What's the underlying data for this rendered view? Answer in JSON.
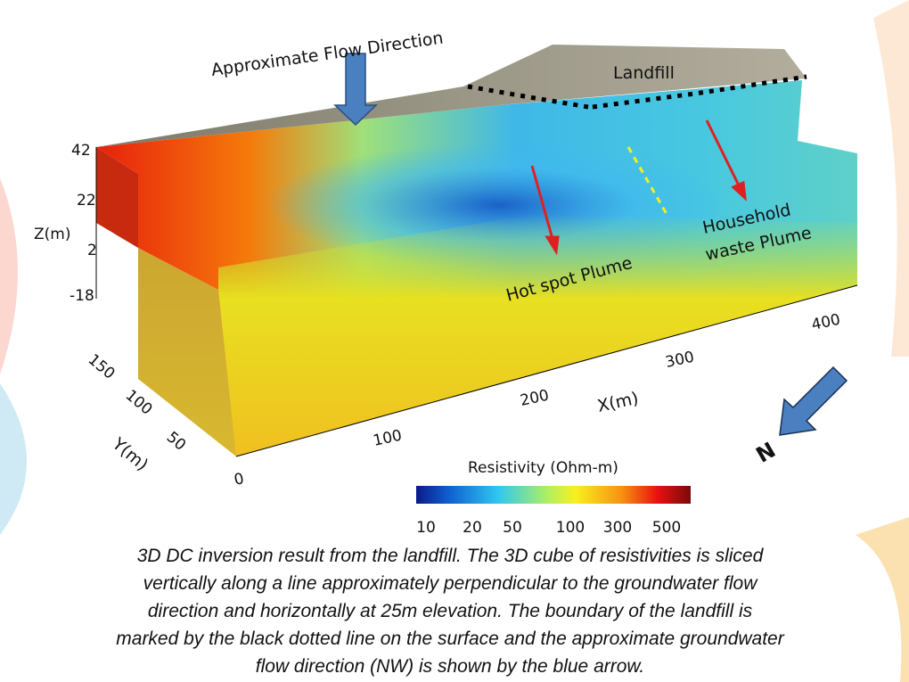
{
  "figure": {
    "flow_label": "Approximate Flow Direction",
    "landfill_label": "Landfill",
    "hotspot_label": "Hot spot Plume",
    "household_label": [
      "Household",
      "waste Plume"
    ],
    "north_label": "N",
    "z_axis": {
      "label": "Z(m)",
      "ticks": [
        "42",
        "22",
        "2",
        "-18"
      ]
    },
    "x_axis": {
      "label": "X(m)",
      "ticks": [
        "0",
        "100",
        "200",
        "300",
        "400"
      ]
    },
    "y_axis": {
      "label": "Y(m)",
      "ticks": [
        "50",
        "100",
        "150"
      ]
    },
    "colorbar": {
      "title": "Resistivity (Ohm-m)",
      "ticks": [
        "10",
        "20",
        "50",
        "100",
        "300",
        "500"
      ]
    }
  },
  "caption": {
    "lines": [
      "3D DC inversion result from the landfill. The 3D cube of resistivities is sliced",
      "vertically along a line approximately perpendicular to the groundwater flow",
      "direction and horizontally at 25m elevation. The boundary of the landfill is",
      "marked by the black dotted line on the surface and the approximate groundwater",
      "flow direction (NW) is shown by the blue arrow."
    ]
  }
}
